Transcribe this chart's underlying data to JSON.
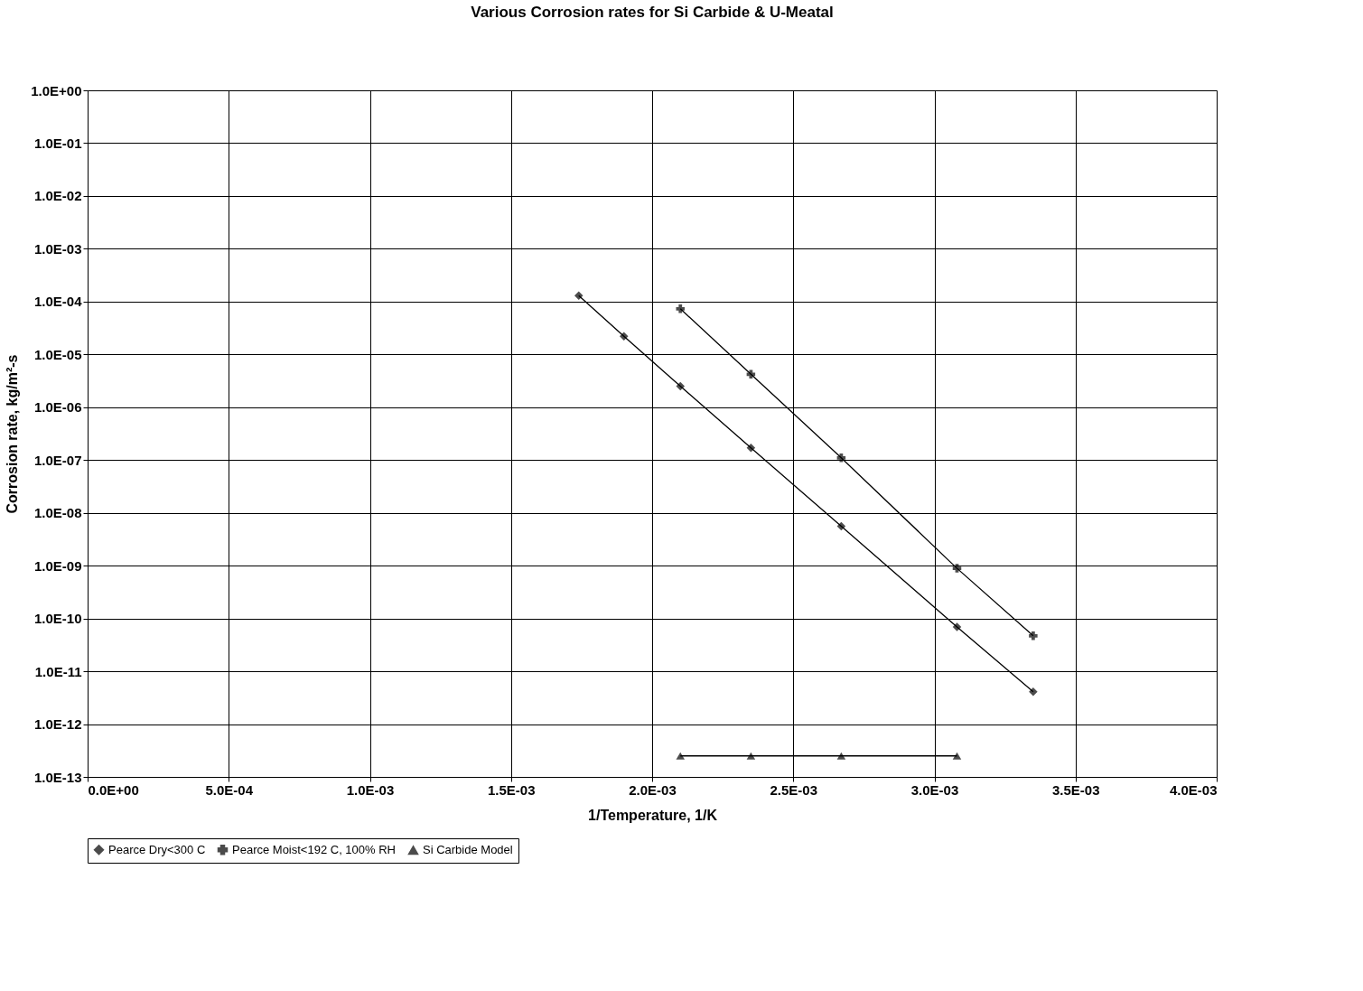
{
  "chart_data": {
    "type": "line",
    "title": "Various Corrosion rates for Si Carbide & U-Meatal",
    "xlabel": "1/Temperature, 1/K",
    "ylabel": "Corrosion rate, kg/m²-s",
    "series": [
      {
        "name": "Pearce Dry<300 C",
        "color": "#000000",
        "marker": "diamond",
        "x": [
          0.00174,
          0.0019,
          0.0021,
          0.00235,
          0.00267,
          0.00308,
          0.00335
        ],
        "values": [
          0.00013,
          2.2e-05,
          2.5e-06,
          1.7e-07,
          5.6e-09,
          6.9e-11,
          4.1e-12
        ]
      },
      {
        "name": "Pearce Moist<192 C, 100% RH",
        "color": "#000000",
        "marker": "cross",
        "x": [
          0.0021,
          0.00235,
          0.00267,
          0.00308,
          0.00335
        ],
        "values": [
          7.3e-05,
          4.2e-06,
          1.1e-07,
          8.9e-10,
          4.7e-11
        ]
      },
      {
        "name": "Si Carbide Model",
        "color": "#000000",
        "marker": "triangle",
        "x": [
          0.0021,
          0.00235,
          0.00267,
          0.00308
        ],
        "values": [
          2.5e-13,
          2.5e-13,
          2.5e-13,
          2.5e-13
        ]
      }
    ],
    "log": "y",
    "grid": true,
    "legend": "bottom",
    "xlim": [
      0,
      0.004
    ],
    "xticks": [
      {
        "value": 0,
        "label": "0.0E+00"
      },
      {
        "value": 0.0005,
        "label": "5.0E-04"
      },
      {
        "value": 0.001,
        "label": "1.0E-03"
      },
      {
        "value": 0.0015,
        "label": "1.5E-03"
      },
      {
        "value": 0.002,
        "label": "2.0E-03"
      },
      {
        "value": 0.0025,
        "label": "2.5E-03"
      },
      {
        "value": 0.003,
        "label": "3.0E-03"
      },
      {
        "value": 0.0035,
        "label": "3.5E-03"
      },
      {
        "value": 0.004,
        "label": "4.0E-03"
      }
    ],
    "ylim": [
      1e-13,
      1
    ],
    "yticks": [
      {
        "value": 1,
        "label": "1.0E+00"
      },
      {
        "value": 0.1,
        "label": "1.0E-01"
      },
      {
        "value": 0.01,
        "label": "1.0E-02"
      },
      {
        "value": 0.001,
        "label": "1.0E-03"
      },
      {
        "value": 0.0001,
        "label": "1.0E-04"
      },
      {
        "value": 1e-05,
        "label": "1.0E-05"
      },
      {
        "value": 1e-06,
        "label": "1.0E-06"
      },
      {
        "value": 1e-07,
        "label": "1.0E-07"
      },
      {
        "value": 1e-08,
        "label": "1.0E-08"
      },
      {
        "value": 1e-09,
        "label": "1.0E-09"
      },
      {
        "value": 1e-10,
        "label": "1.0E-10"
      },
      {
        "value": 1e-11,
        "label": "1.0E-11"
      },
      {
        "value": 1e-12,
        "label": "1.0E-12"
      },
      {
        "value": 1e-13,
        "label": "1.0E-13"
      }
    ]
  }
}
